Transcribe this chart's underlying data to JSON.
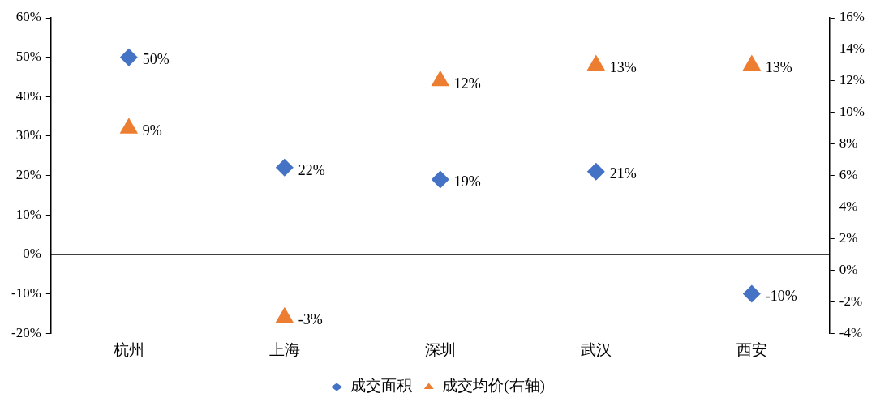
{
  "chart_data": {
    "type": "scatter",
    "categories": [
      "杭州",
      "上海",
      "深圳",
      "武汉",
      "西安"
    ],
    "series": [
      {
        "name": "成交面积",
        "color": "#4472c4",
        "marker": "diamond",
        "values": [
          50,
          22,
          19,
          21,
          -10
        ],
        "value_labels": [
          "50%",
          "22%",
          "19%",
          "21%",
          "-10%"
        ]
      },
      {
        "name": "成交均价(右轴)",
        "color": "#ed7d31",
        "marker": "triangle",
        "axis": "y2",
        "values": [
          9,
          -3,
          12,
          13,
          13
        ],
        "value_labels": [
          "9%",
          "-3%",
          "12%",
          "13%",
          "13%"
        ]
      }
    ],
    "ylim": [
      -20,
      60
    ],
    "yticks": [
      {
        "value": -20,
        "label": "-20%"
      },
      {
        "value": -10,
        "label": "-10%"
      },
      {
        "value": 0,
        "label": "0%"
      },
      {
        "value": 10,
        "label": "10%"
      },
      {
        "value": 20,
        "label": "20%"
      },
      {
        "value": 30,
        "label": "30%"
      },
      {
        "value": 40,
        "label": "40%"
      },
      {
        "value": 50,
        "label": "50%"
      },
      {
        "value": 60,
        "label": "60%"
      }
    ],
    "y2lim": [
      -4,
      16
    ],
    "y2ticks": [
      {
        "value": -4,
        "label": "-4%"
      },
      {
        "value": -2,
        "label": "-2%"
      },
      {
        "value": 0,
        "label": "0%"
      },
      {
        "value": 2,
        "label": "2%"
      },
      {
        "value": 4,
        "label": "4%"
      },
      {
        "value": 6,
        "label": "6%"
      },
      {
        "value": 8,
        "label": "8%"
      },
      {
        "value": 10,
        "label": "10%"
      },
      {
        "value": 12,
        "label": "12%"
      },
      {
        "value": 14,
        "label": "14%"
      },
      {
        "value": 16,
        "label": "16%"
      }
    ],
    "ref_lines": [
      {
        "axis": "y",
        "value": 0,
        "color": "#000000"
      }
    ],
    "grid": false,
    "legend": "bottom"
  }
}
